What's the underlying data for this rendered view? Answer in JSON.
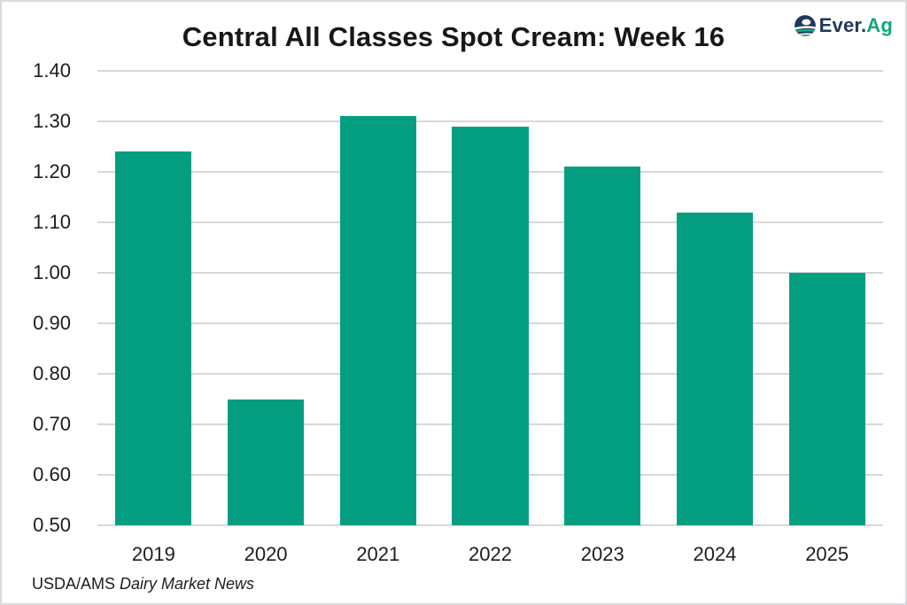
{
  "header": {
    "title": "Central All Classes Spot Cream: Week 16",
    "logo": {
      "text_primary": "Ever.",
      "text_accent": "Ag",
      "icon": "everag-e-icon"
    }
  },
  "footer": {
    "source_prefix": "USDA/AMS ",
    "source_italic": "Dairy Market News"
  },
  "colors": {
    "bar": "#049e80",
    "gridline": "#d7d7d9",
    "text": "#17191c",
    "logo_navy": "#20395c",
    "logo_teal": "#12a77e",
    "frame_border": "#d8dade"
  },
  "chart_data": {
    "type": "bar",
    "title": "Central All Classes Spot Cream: Week 16",
    "categories": [
      "2019",
      "2020",
      "2021",
      "2022",
      "2023",
      "2024",
      "2025"
    ],
    "values": [
      1.24,
      0.75,
      1.31,
      1.29,
      1.21,
      1.12,
      1.0
    ],
    "xlabel": "",
    "ylabel": "",
    "ylim": [
      0.5,
      1.4
    ],
    "ytick_step": 0.1,
    "yticks": [
      "1.40",
      "1.30",
      "1.20",
      "1.10",
      "1.00",
      "0.90",
      "0.80",
      "0.70",
      "0.60",
      "0.50"
    ],
    "grid": true,
    "legend": false,
    "source": "USDA/AMS Dairy Market News"
  }
}
